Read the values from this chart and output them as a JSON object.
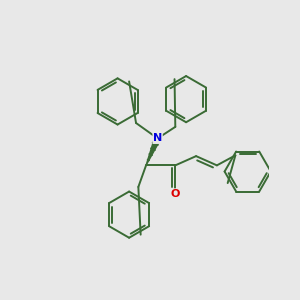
{
  "bg_color": "#e8e8e8",
  "bond_color": "#3a6b35",
  "N_color": "#0000dd",
  "O_color": "#dd0000",
  "lw": 1.4,
  "figsize": [
    3.0,
    3.0
  ],
  "dpi": 100
}
